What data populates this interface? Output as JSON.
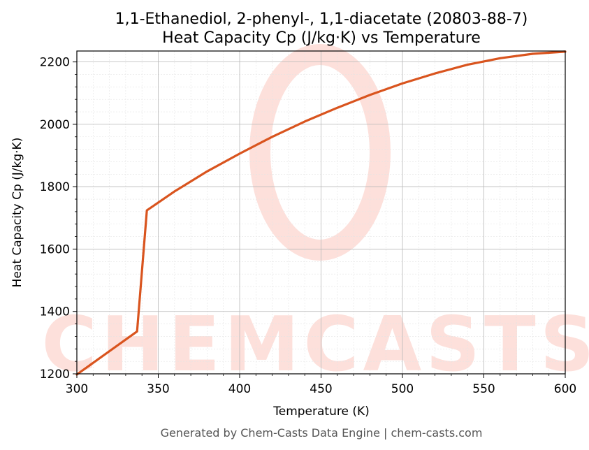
{
  "chart_data": {
    "type": "line",
    "title": "1,1-Ethanediol, 2-phenyl-, 1,1-diacetate (20803-88-7)",
    "subtitle": "Heat Capacity Cp (J/kg·K) vs Temperature",
    "xlabel": "Temperature (K)",
    "ylabel": "Heat Capacity Cp (J/kg·K)",
    "xlim": [
      300,
      600
    ],
    "ylim": [
      1200,
      2235
    ],
    "xticks": [
      300,
      350,
      400,
      450,
      500,
      550,
      600
    ],
    "yticks": [
      1200,
      1400,
      1600,
      1800,
      2000,
      2200
    ],
    "grid": true,
    "series": [
      {
        "color": "#d9541e",
        "x": [
          300,
          337,
          343,
          360,
          380,
          400,
          420,
          440,
          460,
          480,
          500,
          520,
          540,
          560,
          580,
          600
        ],
        "y": [
          1198,
          1336,
          1724,
          1785,
          1849,
          1906,
          1960,
          2009,
          2053,
          2094,
          2131,
          2163,
          2191,
          2212,
          2226,
          2233
        ]
      }
    ]
  },
  "watermark": {
    "text": "CHEMCASTS",
    "color": "#fde0db"
  },
  "footer": "Generated by Chem-Casts Data Engine | chem-casts.com"
}
